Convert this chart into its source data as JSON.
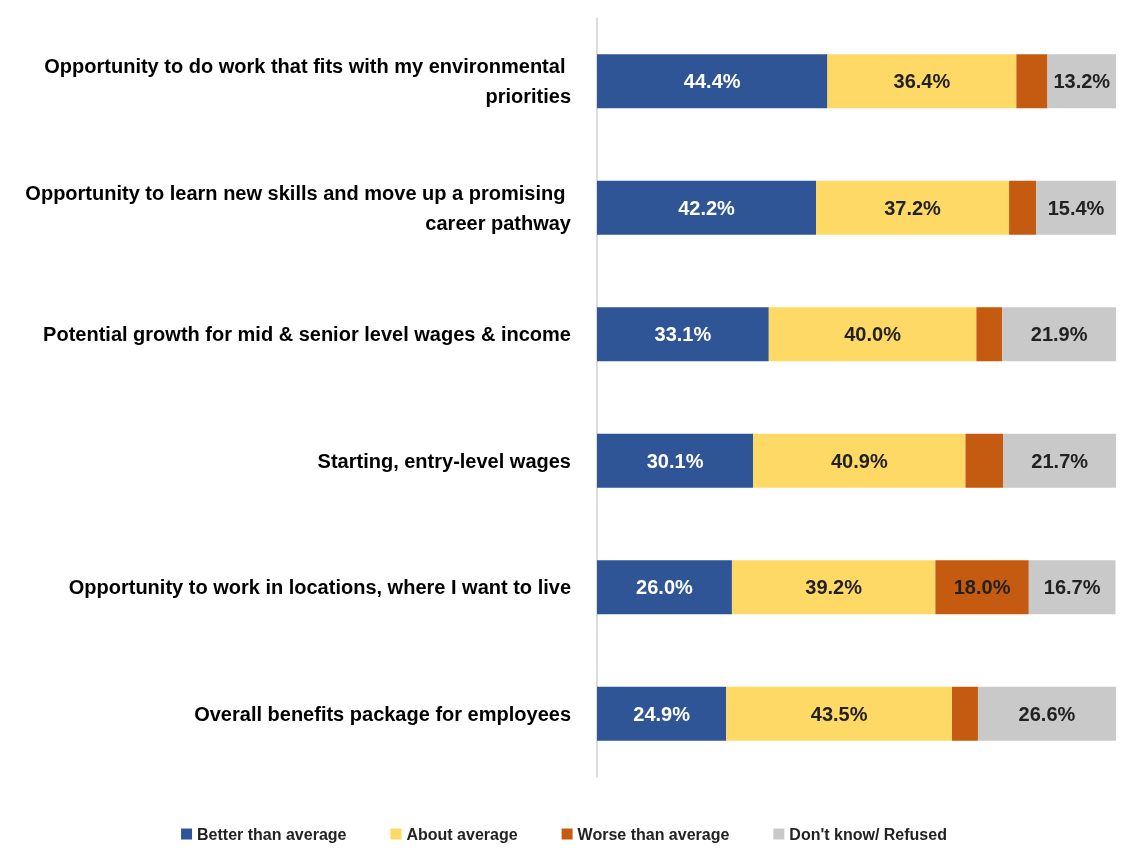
{
  "chart_data": {
    "type": "bar",
    "orientation": "horizontal",
    "stacked": true,
    "legend": "bottom",
    "grid": false,
    "categories": [
      "Opportunity to do work that fits with my environmental priorities",
      "Opportunity to learn new skills and move up a promising career pathway",
      "Potential growth for mid & senior level wages & income",
      "Starting, entry-level wages",
      "Opportunity to work in locations, where I want to live",
      "Overall benefits package for employees"
    ],
    "series": [
      {
        "name": "Better than average",
        "color": "#2f5597",
        "values": [
          44.4,
          42.2,
          33.1,
          30.1,
          26.0,
          24.9
        ],
        "value_labels": [
          "44.4%",
          "42.2%",
          "33.1%",
          "30.1%",
          "26.0%",
          "24.9%"
        ]
      },
      {
        "name": "About average",
        "color": "#ffd966",
        "values": [
          36.4,
          37.2,
          40.0,
          40.9,
          39.2,
          43.5
        ],
        "value_labels": [
          "36.4%",
          "37.2%",
          "40.0%",
          "40.9%",
          "39.2%",
          "43.5%"
        ]
      },
      {
        "name": "Worse than average",
        "color": "#c55a11",
        "values": [
          6.0,
          5.2,
          5.0,
          7.3,
          18.0,
          5.0
        ],
        "value_labels": [
          null,
          null,
          null,
          null,
          "18.0%",
          null
        ]
      },
      {
        "name": "Don't know/ Refused",
        "color": "#c9c9c9",
        "values": [
          13.2,
          15.4,
          21.9,
          21.7,
          16.7,
          26.6
        ],
        "value_labels": [
          "13.2%",
          "15.4%",
          "21.9%",
          "21.7%",
          "16.7%",
          "26.6%"
        ]
      }
    ]
  }
}
